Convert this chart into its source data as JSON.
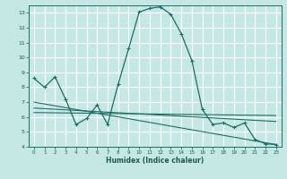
{
  "xlabel": "Humidex (Indice chaleur)",
  "ylabel": "",
  "bg_color": "#c5e8e5",
  "grid_color": "#daf0ee",
  "line_color": "#1a6e65",
  "xlim": [
    -0.5,
    23.5
  ],
  "ylim": [
    4,
    13.5
  ],
  "yticks": [
    4,
    5,
    6,
    7,
    8,
    9,
    10,
    11,
    12,
    13
  ],
  "xticks": [
    0,
    1,
    2,
    3,
    4,
    5,
    6,
    7,
    8,
    9,
    10,
    11,
    12,
    13,
    14,
    15,
    16,
    17,
    18,
    19,
    20,
    21,
    22,
    23
  ],
  "line1_x": [
    0,
    1,
    2,
    3,
    4,
    5,
    6,
    7,
    8,
    9,
    10,
    11,
    12,
    13,
    14,
    15,
    16,
    17,
    18,
    19,
    20,
    21,
    22,
    23
  ],
  "line1_y": [
    8.6,
    8.0,
    8.7,
    7.2,
    5.5,
    5.9,
    6.8,
    5.5,
    8.2,
    10.6,
    13.05,
    13.3,
    13.4,
    12.9,
    11.6,
    9.8,
    6.5,
    5.5,
    5.6,
    5.3,
    5.6,
    4.5,
    4.2,
    4.15
  ],
  "line2_x": [
    0,
    23
  ],
  "line2_y": [
    7.0,
    4.15
  ],
  "line3_x": [
    0,
    23
  ],
  "line3_y": [
    6.6,
    5.7
  ],
  "line4_x": [
    0,
    23
  ],
  "line4_y": [
    6.3,
    6.1
  ]
}
